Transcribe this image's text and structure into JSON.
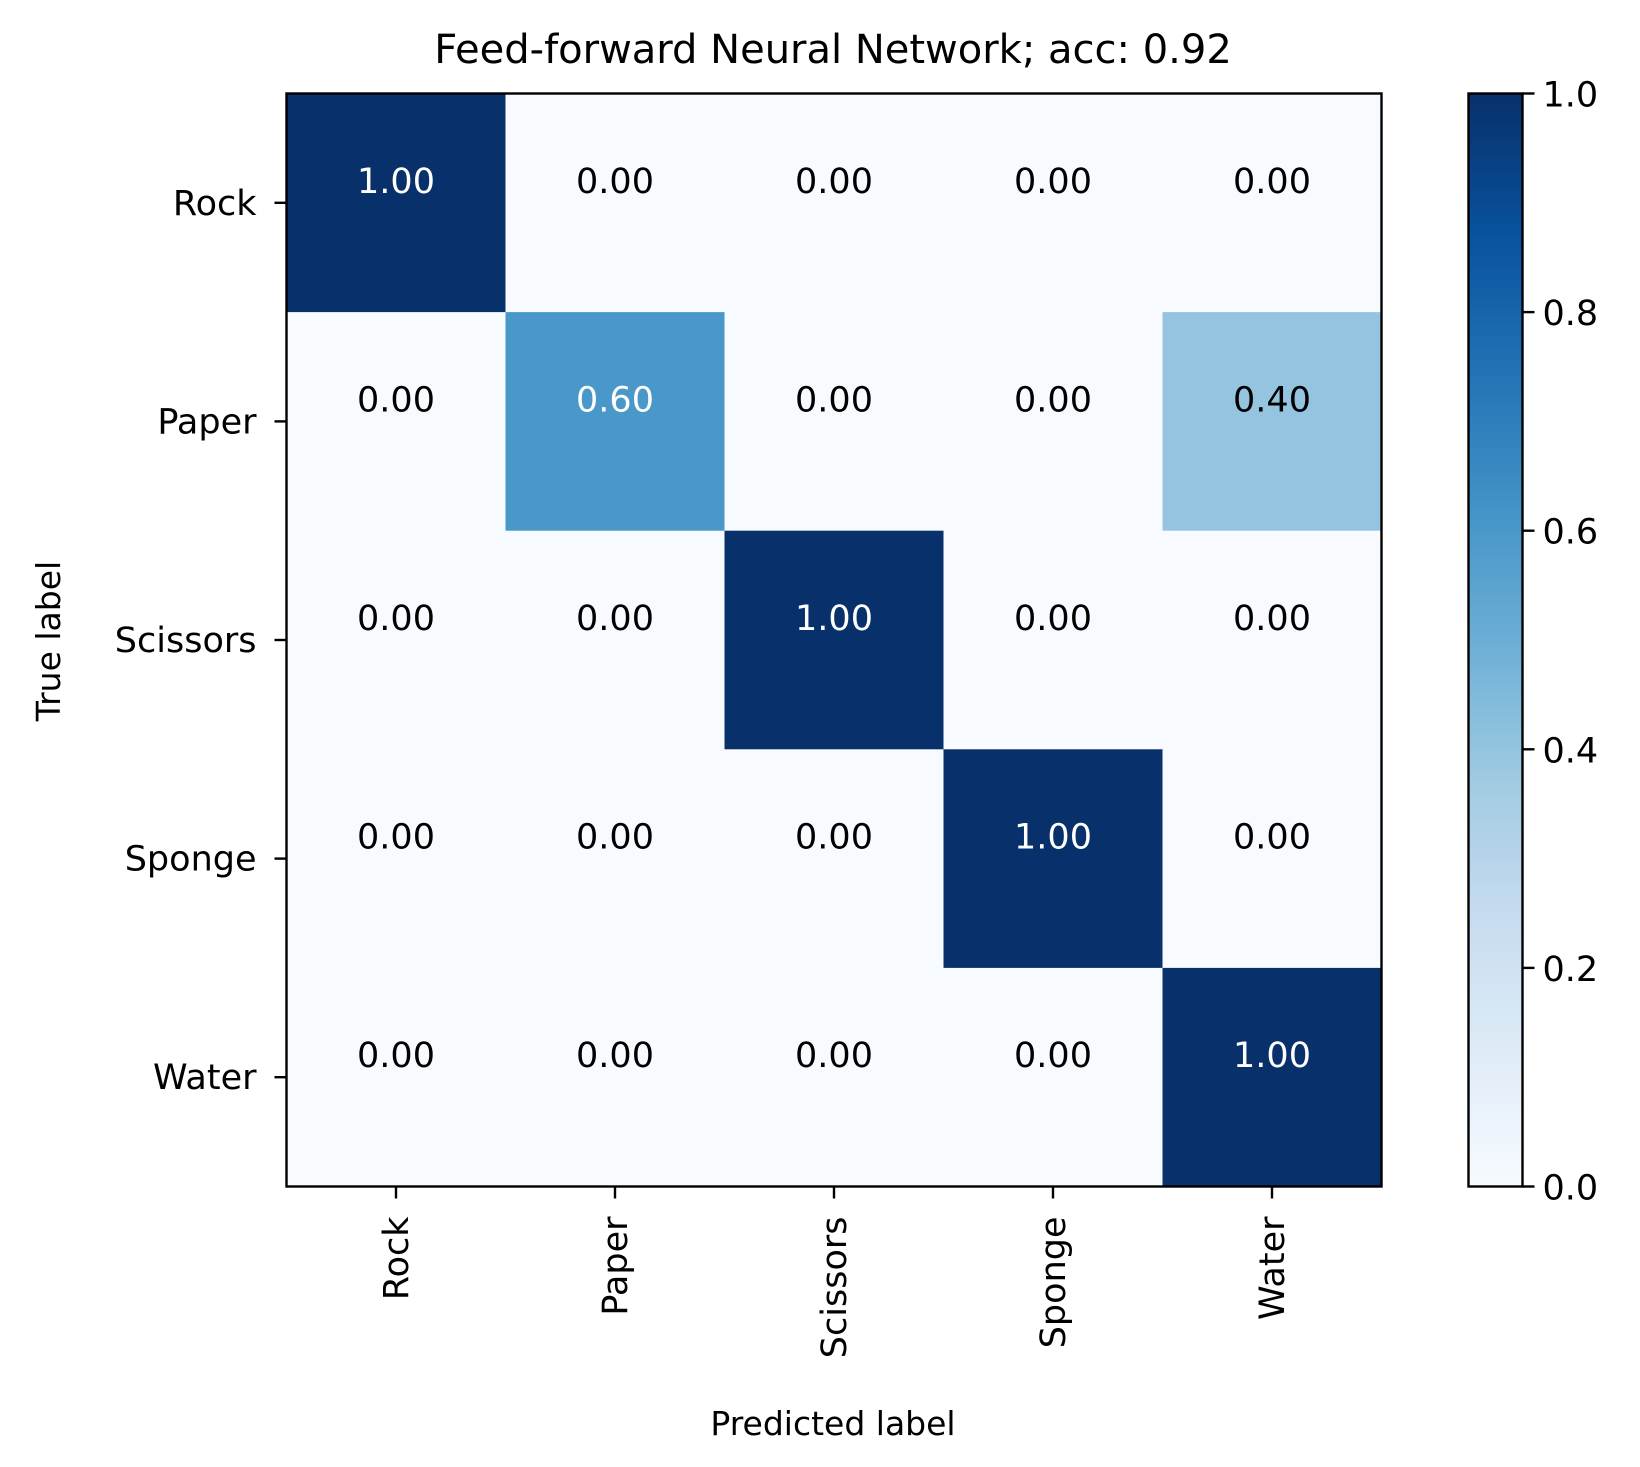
{
  "chart_data": {
    "type": "heatmap",
    "title": "Feed-forward Neural Network; acc: 0.92",
    "xlabel": "Predicted label",
    "ylabel": "True label",
    "x_categories": [
      "Rock",
      "Paper",
      "Scissors",
      "Sponge",
      "Water"
    ],
    "y_categories": [
      "Rock",
      "Paper",
      "Scissors",
      "Sponge",
      "Water"
    ],
    "values": [
      [
        1.0,
        0.0,
        0.0,
        0.0,
        0.0
      ],
      [
        0.0,
        0.6,
        0.0,
        0.0,
        0.4
      ],
      [
        0.0,
        0.0,
        1.0,
        0.0,
        0.0
      ],
      [
        0.0,
        0.0,
        0.0,
        1.0,
        0.0
      ],
      [
        0.0,
        0.0,
        0.0,
        0.0,
        1.0
      ]
    ],
    "cell_labels": [
      [
        "1.00",
        "0.00",
        "0.00",
        "0.00",
        "0.00"
      ],
      [
        "0.00",
        "0.60",
        "0.00",
        "0.00",
        "0.40"
      ],
      [
        "0.00",
        "0.00",
        "1.00",
        "0.00",
        "0.00"
      ],
      [
        "0.00",
        "0.00",
        "0.00",
        "1.00",
        "0.00"
      ],
      [
        "0.00",
        "0.00",
        "0.00",
        "0.00",
        "1.00"
      ]
    ],
    "colormap": "Blues",
    "colorbar": {
      "range": [
        0.0,
        1.0
      ],
      "ticks": [
        "0.0",
        "0.2",
        "0.4",
        "0.6",
        "0.8",
        "1.0"
      ]
    },
    "grid": false
  }
}
